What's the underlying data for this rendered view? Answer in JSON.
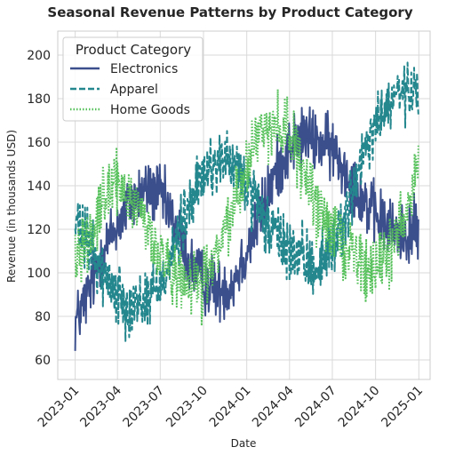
{
  "chart_data": {
    "type": "line",
    "title": "Seasonal Revenue Patterns by Product Category",
    "xlabel": "Date",
    "ylabel": "Revenue (in thousands USD)",
    "x_ticks": [
      "2023-01",
      "2023-04",
      "2023-07",
      "2023-10",
      "2024-01",
      "2024-04",
      "2024-07",
      "2024-10",
      "2025-01"
    ],
    "y_ticks": [
      60,
      80,
      100,
      120,
      140,
      160,
      180,
      200
    ],
    "xlim": [
      "2022-11-25",
      "2025-01-25"
    ],
    "ylim": [
      51,
      211
    ],
    "grid": true,
    "legend": {
      "title": "Product Category",
      "placement": "top-left"
    },
    "x_range": [
      "2023-01-01",
      "2024-12-31"
    ],
    "series": [
      {
        "name": "Electronics",
        "color": "#3b4f8c",
        "style": "solid",
        "x": [
          "2023-01-01",
          "2023-02-01",
          "2023-03-01",
          "2023-04-01",
          "2023-05-01",
          "2023-06-01",
          "2023-07-01",
          "2023-08-01",
          "2023-09-01",
          "2023-10-01",
          "2023-11-01",
          "2023-12-01",
          "2024-01-01",
          "2024-02-01",
          "2024-03-01",
          "2024-04-01",
          "2024-05-01",
          "2024-06-01",
          "2024-07-01",
          "2024-08-01",
          "2024-09-01",
          "2024-10-01",
          "2024-11-01",
          "2024-12-01",
          "2024-12-31"
        ],
        "values": [
          77,
          92,
          110,
          122,
          133,
          138,
          136,
          122,
          104,
          96,
          92,
          95,
          110,
          128,
          145,
          158,
          163,
          160,
          157,
          146,
          135,
          126,
          120,
          118,
          120
        ]
      },
      {
        "name": "Apparel",
        "color": "#24878e",
        "style": "dashed",
        "x": [
          "2023-01-01",
          "2023-02-01",
          "2023-03-01",
          "2023-04-01",
          "2023-05-01",
          "2023-06-01",
          "2023-07-01",
          "2023-08-01",
          "2023-09-01",
          "2023-10-01",
          "2023-11-01",
          "2023-12-01",
          "2024-01-01",
          "2024-02-01",
          "2024-03-01",
          "2024-04-01",
          "2024-05-01",
          "2024-06-01",
          "2024-07-01",
          "2024-08-01",
          "2024-09-01",
          "2024-10-01",
          "2024-11-01",
          "2024-12-01",
          "2024-12-31"
        ],
        "values": [
          122,
          112,
          100,
          90,
          85,
          88,
          95,
          112,
          130,
          145,
          152,
          150,
          140,
          125,
          118,
          110,
          105,
          103,
          112,
          128,
          150,
          168,
          178,
          183,
          180
        ]
      },
      {
        "name": "Home Goods",
        "color": "#56c15b",
        "style": "dotted",
        "x": [
          "2023-01-01",
          "2023-02-01",
          "2023-03-01",
          "2023-04-01",
          "2023-05-01",
          "2023-06-01",
          "2023-07-01",
          "2023-08-01",
          "2023-09-01",
          "2023-10-01",
          "2023-11-01",
          "2023-12-01",
          "2024-01-01",
          "2024-02-01",
          "2024-03-01",
          "2024-04-01",
          "2024-05-01",
          "2024-06-01",
          "2024-07-01",
          "2024-08-01",
          "2024-09-01",
          "2024-10-01",
          "2024-11-01",
          "2024-12-01",
          "2024-12-31"
        ],
        "values": [
          108,
          118,
          135,
          140,
          135,
          122,
          108,
          97,
          92,
          95,
          110,
          130,
          150,
          165,
          170,
          165,
          145,
          128,
          120,
          112,
          105,
          100,
          110,
          128,
          150
        ]
      }
    ]
  }
}
